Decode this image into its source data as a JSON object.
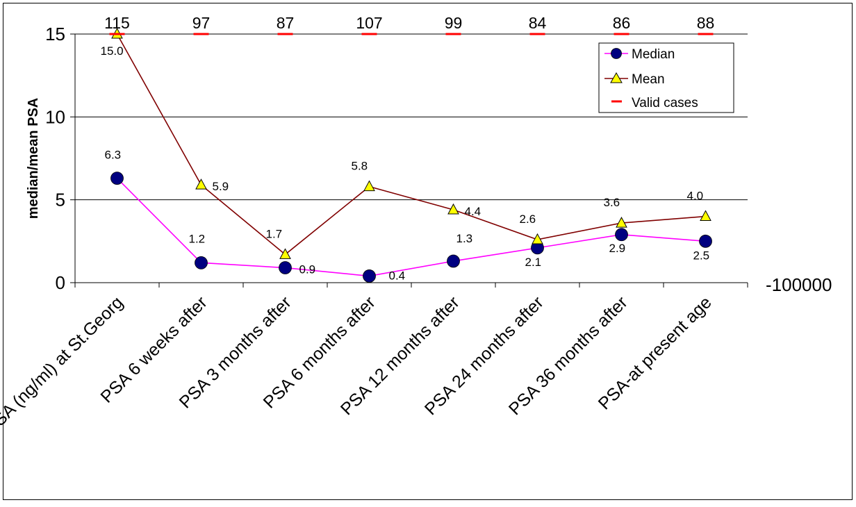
{
  "chart_data": {
    "type": "line",
    "ylabel": "median/mean PSA",
    "ylim": [
      0,
      15
    ],
    "yticks": [
      0,
      5,
      10,
      15
    ],
    "right_axis_label": "-100000",
    "categories": [
      "PSA (ng/ml) at St.Georg",
      "PSA 6 weeks after",
      "PSA 3 months after",
      "PSA 6 months after",
      "PSA 12 months after",
      "PSA 24 months after",
      "PSA 36 months after",
      "PSA-at present age"
    ],
    "series": [
      {
        "name": "Median",
        "values": [
          6.3,
          1.2,
          0.9,
          0.4,
          1.3,
          2.1,
          2.9,
          2.5
        ],
        "labels": [
          "6.3",
          "1.2",
          "0.9",
          "0.4",
          "1.3",
          "2.1",
          "2.9",
          "2.5"
        ],
        "line_color": "#ff00ff",
        "marker": "circle",
        "marker_color": "#000080"
      },
      {
        "name": "Mean",
        "values": [
          15.0,
          5.9,
          1.7,
          5.8,
          4.4,
          2.6,
          3.6,
          4.0
        ],
        "labels": [
          "15.0",
          "5.9",
          "1.7",
          "5.8",
          "4.4",
          "2.6",
          "3.6",
          "4.0"
        ],
        "line_color": "#800000",
        "marker": "triangle",
        "marker_color": "#ffff00"
      },
      {
        "name": "Valid cases",
        "values": [
          115,
          97,
          87,
          107,
          99,
          84,
          86,
          88
        ],
        "labels": [
          "115",
          "97",
          "87",
          "107",
          "99",
          "84",
          "86",
          "88"
        ],
        "line_color": "#ff0000",
        "marker": "dash"
      }
    ],
    "grid": true,
    "legend_position": "top-right"
  }
}
